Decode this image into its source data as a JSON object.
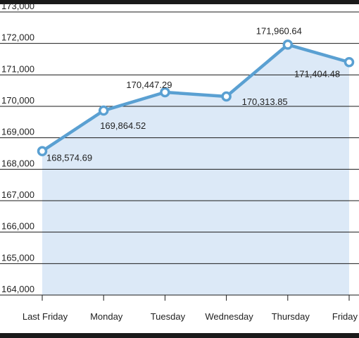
{
  "chart_data": {
    "type": "area",
    "categories": [
      "Last Friday",
      "Monday",
      "Tuesday",
      "Wednesday",
      "Thursday",
      "Friday"
    ],
    "values": [
      168574.69,
      169864.52,
      170447.29,
      170313.85,
      171960.64,
      171404.48
    ],
    "value_labels": [
      "168,574.69",
      "169,864.52",
      "170,447.29",
      "170,313.85",
      "171,960.64",
      "171,404.48"
    ],
    "ylim": [
      164000,
      173000
    ],
    "y_ticks": [
      164000,
      165000,
      166000,
      167000,
      168000,
      169000,
      170000,
      171000,
      172000,
      173000
    ],
    "y_tick_labels": [
      "164,000",
      "165,000",
      "166,000",
      "167,000",
      "168,000",
      "169,000",
      "170,000",
      "171,000",
      "172,000",
      "173,000"
    ],
    "title": "",
    "xlabel": "",
    "ylabel": "",
    "grid": true,
    "colors": {
      "line": "#5aa0d2",
      "fill": "#dce9f7",
      "grid": "#1a1a1a",
      "frame": "#1a1a1a",
      "marker_fill": "#ffffff"
    }
  }
}
